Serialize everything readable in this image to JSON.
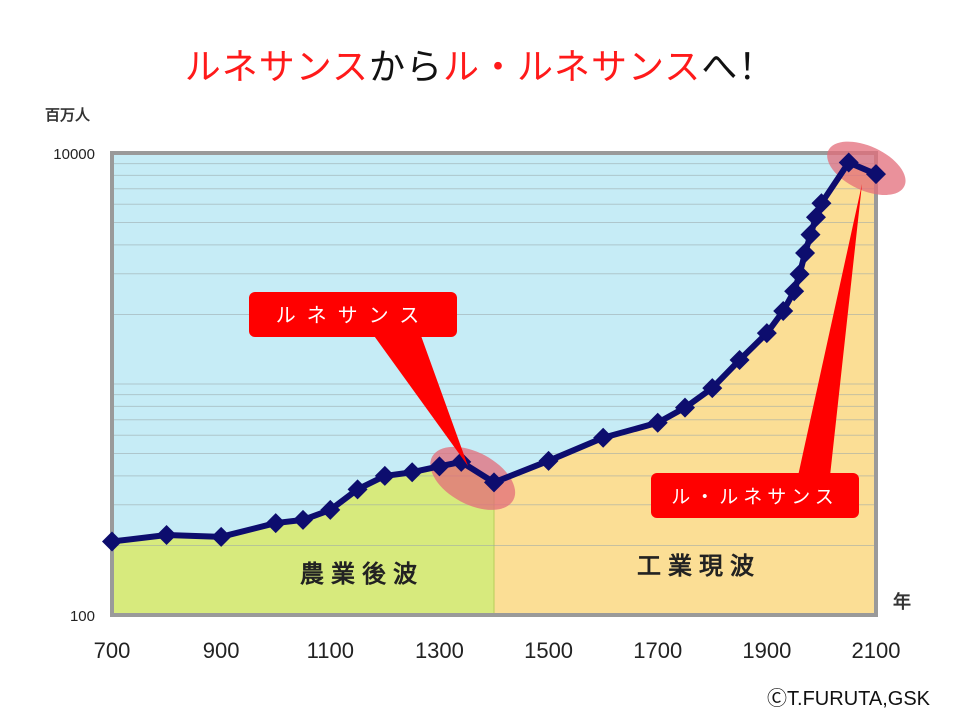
{
  "title": {
    "part1": "ルネサンス",
    "part2": "から",
    "part3": "ル・ルネサンス",
    "part4": "へ！"
  },
  "copyright": "ⒸT.FURUTA,GSK",
  "colors": {
    "title_red": "#ff1a1a",
    "plot_bg": "#c6ecf6",
    "agri_fill": "#d7ea7d",
    "indu_fill": "#fbde95",
    "line": "#0d0d6e",
    "callout": "#ff0000",
    "highlight": "#e36c7a"
  },
  "chart_data": {
    "type": "line",
    "yscale": "log",
    "ylim": [
      100,
      10000
    ],
    "xlim": [
      700,
      2100
    ],
    "ylabel": "百万人",
    "xlabel": "年",
    "y_tick_labels": [
      "100",
      "10000"
    ],
    "x_ticks": [
      700,
      900,
      1100,
      1300,
      1500,
      1700,
      1900,
      2100
    ],
    "grid": true,
    "series": [
      {
        "x": [
          700,
          800,
          900,
          1000,
          1050,
          1100,
          1150,
          1200,
          1250,
          1300,
          1340,
          1400,
          1500,
          1600,
          1700,
          1750,
          1800,
          1850,
          1900,
          1930,
          1950,
          1960,
          1970,
          1980,
          1990,
          2000,
          2050,
          2100
        ],
        "y": [
          208,
          222,
          218,
          250,
          258,
          285,
          350,
          400,
          415,
          440,
          460,
          375,
          465,
          585,
          680,
          790,
          960,
          1270,
          1660,
          2070,
          2520,
          2990,
          3690,
          4430,
          5270,
          6060,
          9100,
          8100
        ]
      }
    ],
    "regions": [
      {
        "label": "農業後波",
        "x_from": 700,
        "x_to": 1400
      },
      {
        "label": "工業現波",
        "x_from": 1400,
        "x_to": 2100
      }
    ],
    "annotations": [
      {
        "label": "ルネサンス",
        "x_from": 1300,
        "x_to": 1400
      },
      {
        "label": "ル・ルネサンス",
        "x_from": 2050,
        "x_to": 2100
      }
    ]
  }
}
